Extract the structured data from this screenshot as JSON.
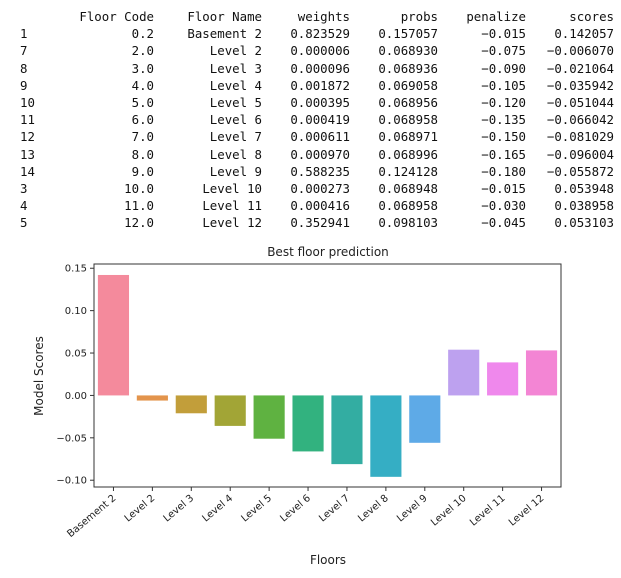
{
  "table": {
    "index_header": "",
    "columns": [
      "Floor Code",
      "Floor Name",
      "weights",
      "probs",
      "penalize",
      "scores"
    ],
    "rows": [
      {
        "index": "1",
        "cells": [
          "0.2",
          "Basement 2",
          "0.823529",
          "0.157057",
          "−0.015",
          "0.142057"
        ]
      },
      {
        "index": "7",
        "cells": [
          "2.0",
          "Level 2",
          "0.000006",
          "0.068930",
          "−0.075",
          "−0.006070"
        ]
      },
      {
        "index": "8",
        "cells": [
          "3.0",
          "Level 3",
          "0.000096",
          "0.068936",
          "−0.090",
          "−0.021064"
        ]
      },
      {
        "index": "9",
        "cells": [
          "4.0",
          "Level 4",
          "0.001872",
          "0.069058",
          "−0.105",
          "−0.035942"
        ]
      },
      {
        "index": "10",
        "cells": [
          "5.0",
          "Level 5",
          "0.000395",
          "0.068956",
          "−0.120",
          "−0.051044"
        ]
      },
      {
        "index": "11",
        "cells": [
          "6.0",
          "Level 6",
          "0.000419",
          "0.068958",
          "−0.135",
          "−0.066042"
        ]
      },
      {
        "index": "12",
        "cells": [
          "7.0",
          "Level 7",
          "0.000611",
          "0.068971",
          "−0.150",
          "−0.081029"
        ]
      },
      {
        "index": "13",
        "cells": [
          "8.0",
          "Level 8",
          "0.000970",
          "0.068996",
          "−0.165",
          "−0.096004"
        ]
      },
      {
        "index": "14",
        "cells": [
          "9.0",
          "Level 9",
          "0.588235",
          "0.124128",
          "−0.180",
          "−0.055872"
        ]
      },
      {
        "index": "3",
        "cells": [
          "10.0",
          "Level 10",
          "0.000273",
          "0.068948",
          "−0.015",
          "0.053948"
        ]
      },
      {
        "index": "4",
        "cells": [
          "11.0",
          "Level 11",
          "0.000416",
          "0.068958",
          "−0.030",
          "0.038958"
        ]
      },
      {
        "index": "5",
        "cells": [
          "12.0",
          "Level 12",
          "0.352941",
          "0.098103",
          "−0.045",
          "0.053103"
        ]
      }
    ]
  },
  "chart_data": {
    "type": "bar",
    "title": "Best floor prediction",
    "xlabel": "Floors",
    "ylabel": "Model Scores",
    "categories": [
      "Basement 2",
      "Level 2",
      "Level 3",
      "Level 4",
      "Level 5",
      "Level 6",
      "Level 7",
      "Level 8",
      "Level 9",
      "Level 10",
      "Level 11",
      "Level 12"
    ],
    "values": [
      0.142057,
      -0.00607,
      -0.021064,
      -0.035942,
      -0.051044,
      -0.066042,
      -0.081029,
      -0.096004,
      -0.055872,
      0.053948,
      0.038958,
      0.053103
    ],
    "colors": [
      "#f48a9c",
      "#e3944c",
      "#c29e3a",
      "#a2a536",
      "#5fb241",
      "#32b27f",
      "#33ada2",
      "#35aec4",
      "#5eaae7",
      "#bda1ef",
      "#ef88ec",
      "#f385d4"
    ],
    "ylim": [
      -0.108,
      0.155
    ],
    "yticks": [
      0.15,
      0.1,
      0.05,
      0.0,
      -0.05,
      -0.1
    ],
    "ytick_labels": [
      "0.15",
      "0.10",
      "0.05",
      "0.00",
      "−0.05",
      "−0.10"
    ],
    "grid": false,
    "legend": "none"
  }
}
